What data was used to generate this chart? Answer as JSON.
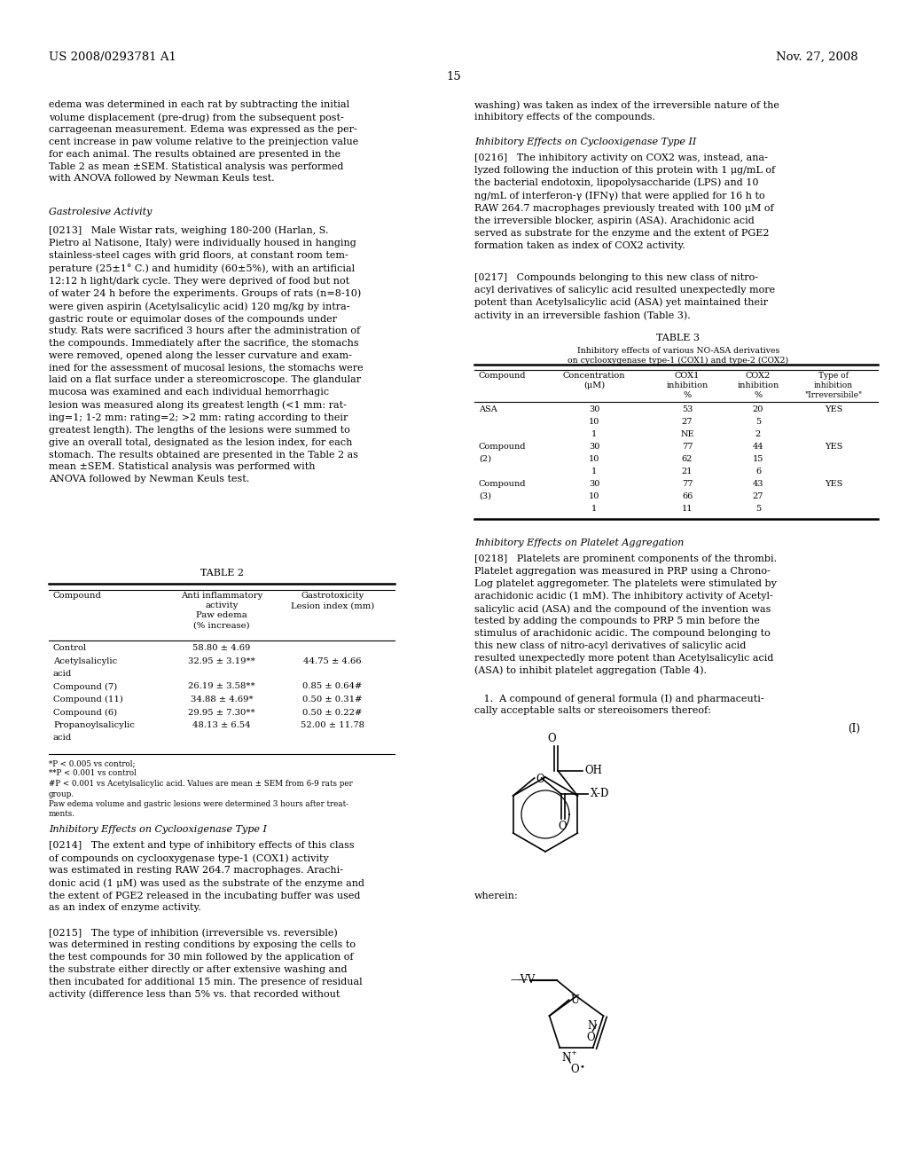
{
  "bg": "#ffffff",
  "tc": "#000000",
  "patent": "US 2008/0293781 A1",
  "date": "Nov. 27, 2008",
  "page": "15"
}
